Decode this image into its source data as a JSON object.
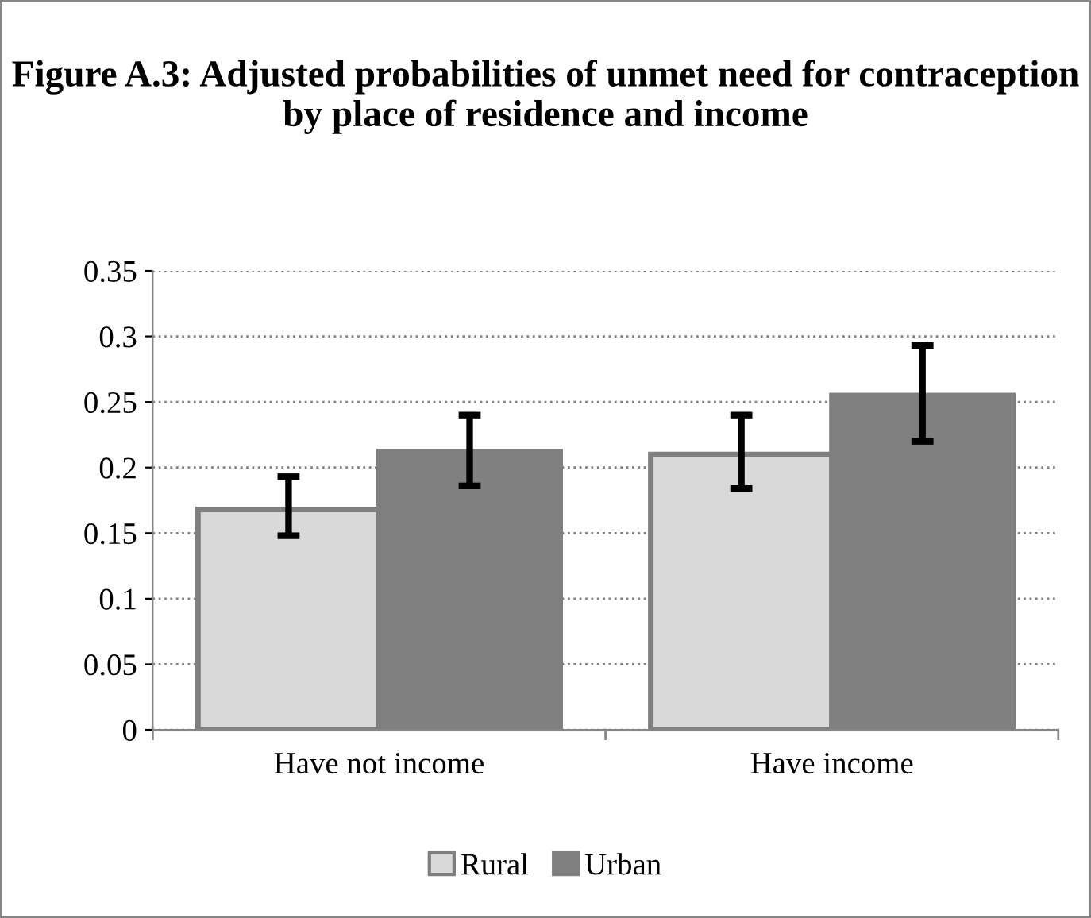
{
  "chart_data": {
    "type": "bar",
    "title": "Figure A.3: Adjusted probabilities of unmet need for contraception by place of residence and income",
    "categories": [
      "Have not income",
      "Have income"
    ],
    "series": [
      {
        "name": "Rural",
        "color": "#d9d9d9",
        "values": [
          0.168,
          0.21
        ],
        "errors": [
          [
            0.148,
            0.193
          ],
          [
            0.184,
            0.24
          ]
        ]
      },
      {
        "name": "Urban",
        "color": "#808080",
        "values": [
          0.212,
          0.255
        ],
        "errors": [
          [
            0.186,
            0.24
          ],
          [
            0.22,
            0.293
          ]
        ]
      }
    ],
    "ylim": [
      0,
      0.35
    ],
    "yticks": [
      0,
      0.05,
      0.1,
      0.15,
      0.2,
      0.25,
      0.3,
      0.35
    ],
    "grid": "y",
    "legend": "bottom"
  }
}
